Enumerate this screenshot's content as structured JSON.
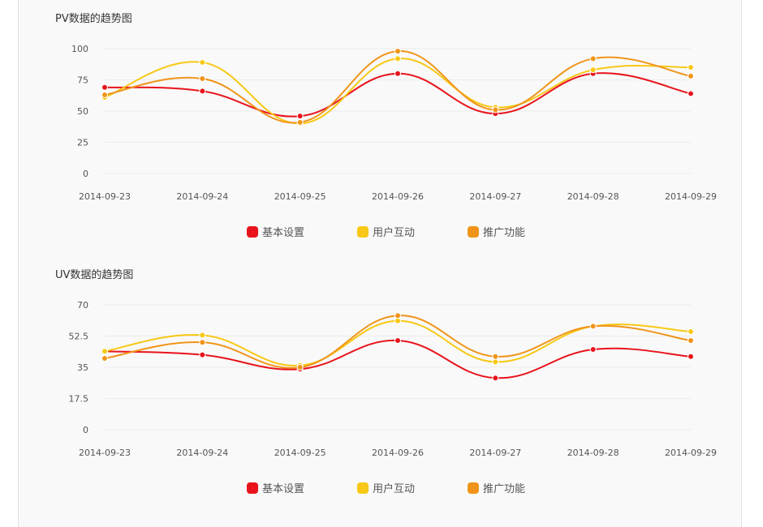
{
  "chart_data": [
    {
      "type": "line",
      "title": "PV数据的趋势图",
      "categories": [
        "2014-09-23",
        "2014-09-24",
        "2014-09-25",
        "2014-09-26",
        "2014-09-27",
        "2014-09-28",
        "2014-09-29"
      ],
      "yticks": [
        "0",
        "25",
        "50",
        "75",
        "100"
      ],
      "ylim": [
        0,
        100
      ],
      "grid": true,
      "legend_position": "bottom-center",
      "series": [
        {
          "name": "基本设置",
          "color": "#e8131c",
          "values": [
            69,
            66,
            46,
            80,
            48,
            80,
            64
          ]
        },
        {
          "name": "用户互动",
          "color": "#f7c815",
          "values": [
            61,
            89,
            40,
            92,
            53,
            83,
            85
          ]
        },
        {
          "name": "推广功能",
          "color": "#f09419",
          "values": [
            63,
            76,
            41,
            98,
            51,
            92,
            78
          ]
        }
      ]
    },
    {
      "type": "line",
      "title": "UV数据的趋势图",
      "categories": [
        "2014-09-23",
        "2014-09-24",
        "2014-09-25",
        "2014-09-26",
        "2014-09-27",
        "2014-09-28",
        "2014-09-29"
      ],
      "yticks": [
        "0",
        "17.5",
        "35",
        "52.5",
        "70"
      ],
      "ylim": [
        0,
        70
      ],
      "grid": true,
      "legend_position": "bottom-center",
      "series": [
        {
          "name": "基本设置",
          "color": "#e8131c",
          "values": [
            44,
            42,
            34,
            50,
            29,
            45,
            41
          ]
        },
        {
          "name": "用户互动",
          "color": "#f7c815",
          "values": [
            44,
            53,
            36,
            61,
            38,
            58,
            55
          ]
        },
        {
          "name": "推广功能",
          "color": "#f09419",
          "values": [
            40,
            49,
            35,
            64,
            41,
            58,
            50
          ]
        }
      ]
    }
  ]
}
